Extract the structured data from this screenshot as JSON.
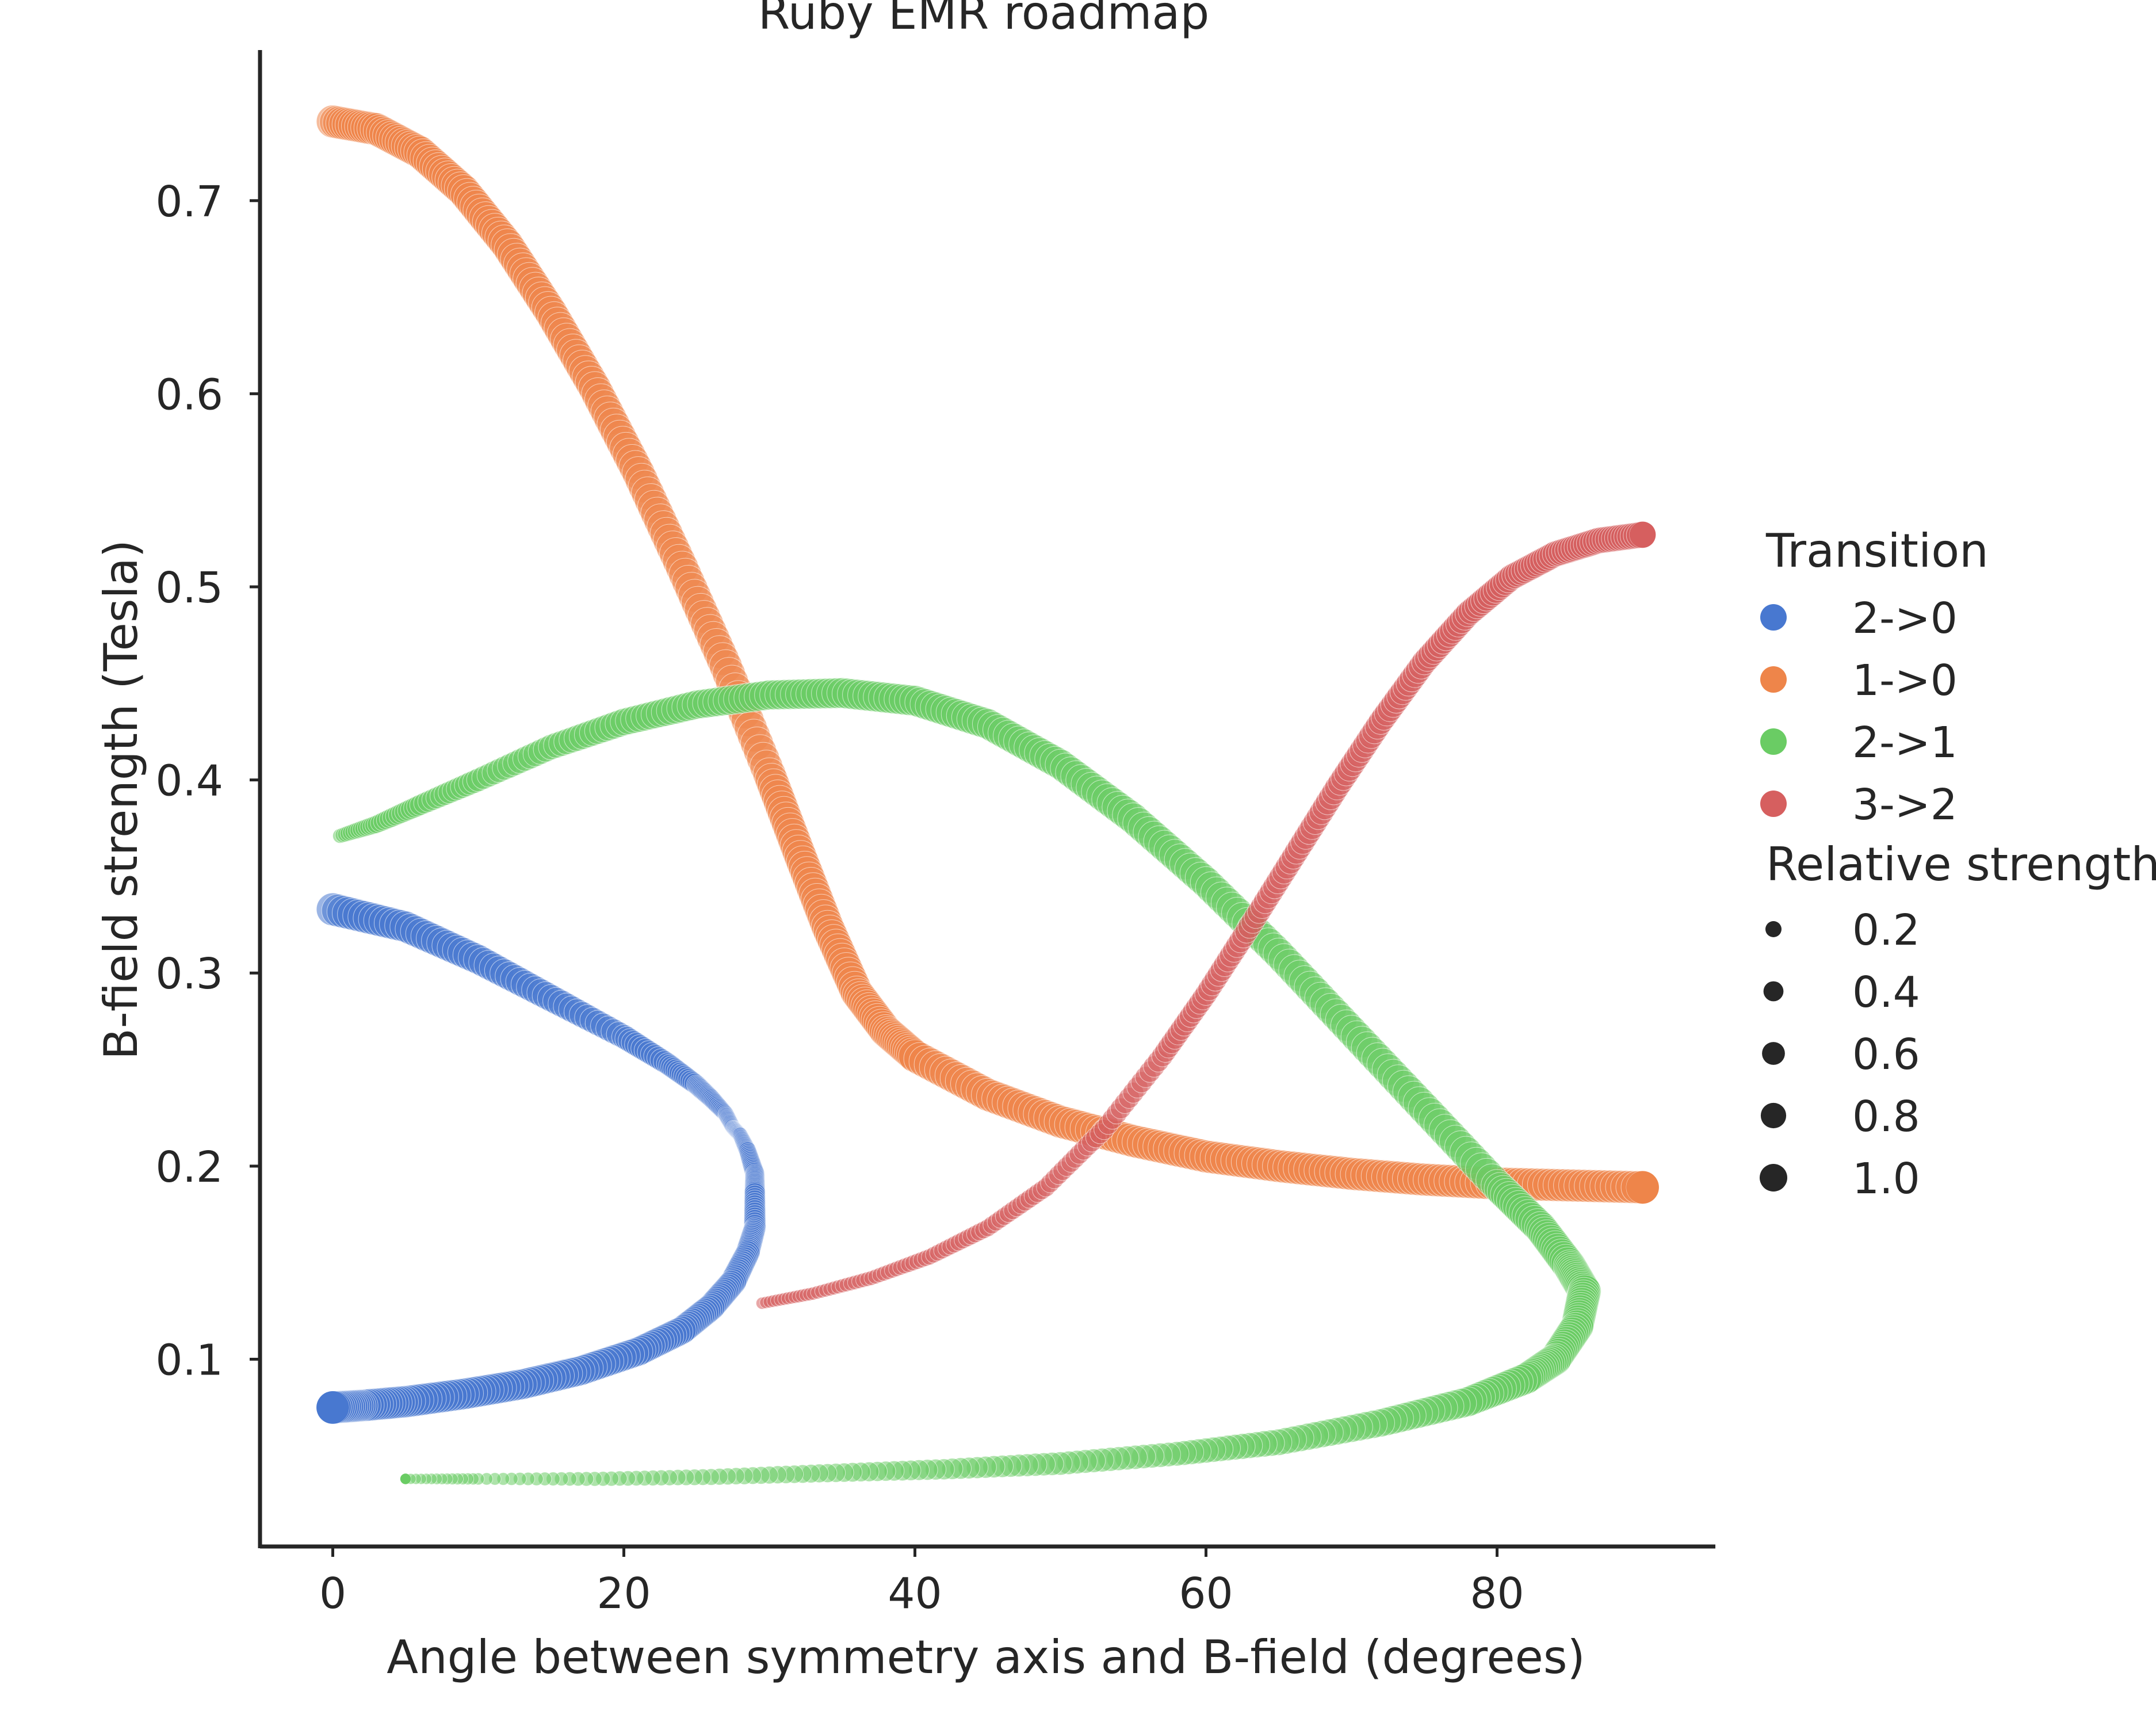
{
  "chart_data": {
    "type": "scatter",
    "title": "Ruby EMR roadmap",
    "xlabel": "Angle between symmetry axis and B-field (degrees)",
    "ylabel": "B-field strength (Tesla)",
    "xlim": [
      -5,
      95
    ],
    "ylim": [
      0.003,
      0.778
    ],
    "x_ticks": [
      0,
      20,
      40,
      60,
      80
    ],
    "y_ticks": [
      0.1,
      0.2,
      0.3,
      0.4,
      0.5,
      0.6,
      0.7
    ],
    "x_tick_labels": [
      "0",
      "20",
      "40",
      "60",
      "80"
    ],
    "y_tick_labels": [
      "0.1",
      "0.2",
      "0.3",
      "0.4",
      "0.5",
      "0.6",
      "0.7"
    ],
    "grid": false,
    "legend_placement": "right",
    "legend": {
      "hue_title": "Transition",
      "size_title": "Relative strength",
      "hue_entries": [
        {
          "label": "2->0",
          "color": "#4878d0"
        },
        {
          "label": "1->0",
          "color": "#ee854a"
        },
        {
          "label": "2->1",
          "color": "#6acc64"
        },
        {
          "label": "3->2",
          "color": "#d65f5f"
        }
      ],
      "size_entries": [
        {
          "label": "0.2",
          "value": 0.2
        },
        {
          "label": "0.4",
          "value": 0.4
        },
        {
          "label": "0.6",
          "value": 0.6
        },
        {
          "label": "0.8",
          "value": 0.8
        },
        {
          "label": "1.0",
          "value": 1.0
        }
      ]
    },
    "series": [
      {
        "name": "2->0",
        "color": "#4878d0",
        "points": [
          [
            0,
            0.333,
            0.95
          ],
          [
            5,
            0.324,
            0.85
          ],
          [
            10,
            0.307,
            0.75
          ],
          [
            15,
            0.287,
            0.6
          ],
          [
            20,
            0.267,
            0.45
          ],
          [
            23,
            0.253,
            0.35
          ],
          [
            25,
            0.242,
            0.28
          ],
          [
            26,
            0.235,
            0.22
          ],
          [
            27,
            0.227,
            0.15
          ],
          [
            27.5,
            0.22,
            0.12
          ],
          [
            28,
            0.216,
            0.12
          ],
          [
            28.5,
            0.208,
            0.18
          ],
          [
            29,
            0.196,
            0.25
          ],
          [
            29,
            0.186,
            0.3
          ],
          [
            29,
            0.168,
            0.35
          ],
          [
            28.5,
            0.155,
            0.45
          ],
          [
            27.5,
            0.14,
            0.55
          ],
          [
            26,
            0.127,
            0.6
          ],
          [
            24,
            0.115,
            0.65
          ],
          [
            21,
            0.104,
            0.7
          ],
          [
            17,
            0.094,
            0.75
          ],
          [
            13,
            0.087,
            0.8
          ],
          [
            9,
            0.082,
            0.85
          ],
          [
            5,
            0.078,
            0.9
          ],
          [
            2,
            0.076,
            0.92
          ],
          [
            0,
            0.075,
            0.95
          ]
        ]
      },
      {
        "name": "1->0",
        "color": "#ee854a",
        "points": [
          [
            0,
            0.741,
            0.95
          ],
          [
            3,
            0.737,
            0.95
          ],
          [
            6,
            0.725,
            0.95
          ],
          [
            9,
            0.705,
            0.95
          ],
          [
            12,
            0.677,
            0.95
          ],
          [
            15,
            0.642,
            0.95
          ],
          [
            18,
            0.603,
            0.95
          ],
          [
            21,
            0.559,
            0.95
          ],
          [
            24,
            0.51,
            0.95
          ],
          [
            27,
            0.459,
            0.95
          ],
          [
            30,
            0.403,
            0.95
          ],
          [
            32,
            0.363,
            0.95
          ],
          [
            34,
            0.324,
            0.95
          ],
          [
            36,
            0.29,
            0.95
          ],
          [
            38,
            0.27,
            0.95
          ],
          [
            40,
            0.257,
            0.95
          ],
          [
            45,
            0.237,
            0.95
          ],
          [
            50,
            0.223,
            0.95
          ],
          [
            55,
            0.213,
            0.95
          ],
          [
            60,
            0.205,
            0.95
          ],
          [
            65,
            0.2,
            0.95
          ],
          [
            70,
            0.196,
            0.95
          ],
          [
            75,
            0.193,
            0.95
          ],
          [
            80,
            0.191,
            0.95
          ],
          [
            85,
            0.19,
            0.95
          ],
          [
            90,
            0.189,
            0.95
          ]
        ]
      },
      {
        "name": "2->1",
        "color": "#6acc64",
        "points": [
          [
            0.5,
            0.371,
            0.1
          ],
          [
            3,
            0.377,
            0.2
          ],
          [
            6,
            0.387,
            0.3
          ],
          [
            10,
            0.4,
            0.4
          ],
          [
            15,
            0.417,
            0.5
          ],
          [
            20,
            0.43,
            0.6
          ],
          [
            25,
            0.439,
            0.7
          ],
          [
            30,
            0.444,
            0.75
          ],
          [
            35,
            0.445,
            0.8
          ],
          [
            40,
            0.441,
            0.8
          ],
          [
            45,
            0.429,
            0.8
          ],
          [
            50,
            0.408,
            0.8
          ],
          [
            55,
            0.38,
            0.85
          ],
          [
            60,
            0.347,
            0.85
          ],
          [
            65,
            0.31,
            0.85
          ],
          [
            70,
            0.27,
            0.85
          ],
          [
            75,
            0.23,
            0.9
          ],
          [
            80,
            0.19,
            0.9
          ],
          [
            83,
            0.168,
            0.95
          ],
          [
            85,
            0.148,
            1.0
          ],
          [
            86,
            0.135,
            1.0
          ],
          [
            85.5,
            0.117,
            0.95
          ],
          [
            84,
            0.1,
            0.9
          ],
          [
            82,
            0.09,
            0.85
          ],
          [
            78,
            0.078,
            0.75
          ],
          [
            72,
            0.067,
            0.65
          ],
          [
            65,
            0.057,
            0.55
          ],
          [
            58,
            0.051,
            0.45
          ],
          [
            50,
            0.046,
            0.4
          ],
          [
            42,
            0.043,
            0.3
          ],
          [
            34,
            0.041,
            0.22
          ],
          [
            26,
            0.039,
            0.15
          ],
          [
            18,
            0.038,
            0.1
          ],
          [
            10,
            0.038,
            0.05
          ],
          [
            5,
            0.038,
            0.03
          ]
        ]
      },
      {
        "name": "3->2",
        "color": "#d65f5f",
        "points": [
          [
            29.5,
            0.129,
            0.05
          ],
          [
            33,
            0.134,
            0.07
          ],
          [
            37,
            0.142,
            0.1
          ],
          [
            41,
            0.153,
            0.14
          ],
          [
            45,
            0.168,
            0.18
          ],
          [
            49,
            0.189,
            0.22
          ],
          [
            53,
            0.219,
            0.28
          ],
          [
            57,
            0.257,
            0.32
          ],
          [
            60,
            0.289,
            0.36
          ],
          [
            63,
            0.324,
            0.4
          ],
          [
            66,
            0.36,
            0.43
          ],
          [
            69,
            0.396,
            0.46
          ],
          [
            72,
            0.43,
            0.48
          ],
          [
            75,
            0.461,
            0.5
          ],
          [
            78,
            0.486,
            0.52
          ],
          [
            81,
            0.505,
            0.53
          ],
          [
            84,
            0.517,
            0.54
          ],
          [
            87,
            0.524,
            0.55
          ],
          [
            90,
            0.527,
            0.55
          ]
        ]
      }
    ]
  }
}
